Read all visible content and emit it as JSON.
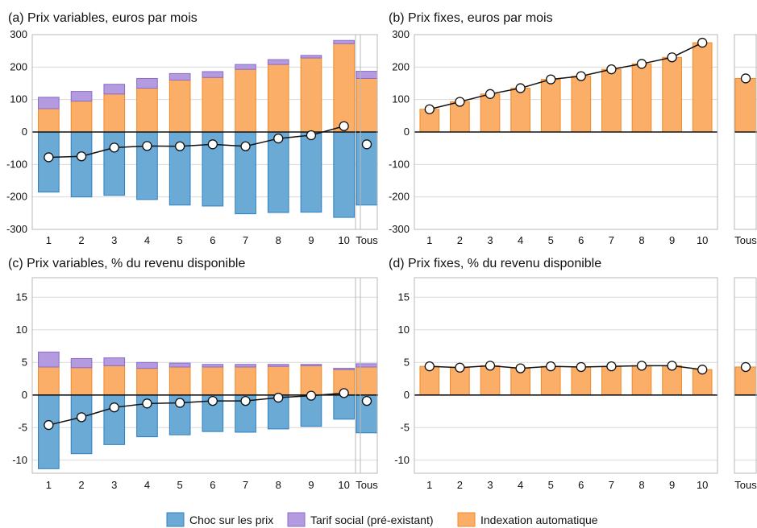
{
  "colors": {
    "choc": "#6aaad4",
    "choc_edge": "#2f7fbf",
    "tarif": "#b49be0",
    "tarif_edge": "#8a6cc8",
    "index": "#fbae68",
    "index_edge": "#f08a28",
    "grid": "#d9d9d9",
    "frame": "#b8b8b8",
    "line": "#111111"
  },
  "legend": {
    "choc": "Choc sur les prix",
    "tarif": "Tarif social (pré-existant)",
    "index": "Indexation automatique"
  },
  "chart_data": [
    {
      "type": "bar",
      "title": "(a) Prix variables, euros par mois",
      "categories": [
        "1",
        "2",
        "3",
        "4",
        "5",
        "6",
        "7",
        "8",
        "9",
        "10"
      ],
      "total_label": "Tous",
      "ylim": [
        -300,
        300
      ],
      "yticks": [
        -300,
        -200,
        -100,
        0,
        100,
        200,
        300
      ],
      "grid": true,
      "series": [
        {
          "name": "Choc sur les prix",
          "values": [
            -185,
            -200,
            -195,
            -208,
            -225,
            -228,
            -252,
            -248,
            -247,
            -263
          ],
          "total": -225
        },
        {
          "name": "Indexation automatique",
          "values": [
            72,
            95,
            117,
            135,
            160,
            168,
            193,
            208,
            228,
            272
          ],
          "total": 165
        },
        {
          "name": "Tarif social (pré-existant)",
          "values": [
            35,
            30,
            30,
            30,
            20,
            18,
            15,
            15,
            8,
            10
          ],
          "total": 22
        }
      ],
      "net": {
        "values": [
          -78,
          -75,
          -48,
          -43,
          -44,
          -38,
          -44,
          -20,
          -10,
          18
        ],
        "total": -38
      }
    },
    {
      "type": "bar",
      "title": "(b) Prix fixes, euros par mois",
      "categories": [
        "1",
        "2",
        "3",
        "4",
        "5",
        "6",
        "7",
        "8",
        "9",
        "10"
      ],
      "total_label": "Tous",
      "ylim": [
        -300,
        300
      ],
      "yticks": [
        -300,
        -200,
        -100,
        0,
        100,
        200,
        300
      ],
      "grid": true,
      "series": [
        {
          "name": "Indexation automatique",
          "values": [
            70,
            93,
            117,
            135,
            162,
            172,
            193,
            210,
            230,
            275
          ],
          "total": 165
        }
      ],
      "net": {
        "values": [
          70,
          93,
          117,
          135,
          162,
          172,
          193,
          210,
          230,
          275
        ],
        "total": 165
      }
    },
    {
      "type": "bar",
      "title": "(c) Prix variables, % du revenu disponible",
      "categories": [
        "1",
        "2",
        "3",
        "4",
        "5",
        "6",
        "7",
        "8",
        "9",
        "10"
      ],
      "total_label": "Tous",
      "ylim": [
        -12,
        18
      ],
      "yticks": [
        -10,
        -5,
        0,
        5,
        10,
        15
      ],
      "grid": true,
      "series": [
        {
          "name": "Choc sur les prix",
          "values": [
            -11.3,
            -9.0,
            -7.6,
            -6.4,
            -6.1,
            -5.6,
            -5.7,
            -5.2,
            -4.8,
            -3.7
          ],
          "total": -5.8
        },
        {
          "name": "Indexation automatique",
          "values": [
            4.3,
            4.2,
            4.5,
            4.1,
            4.3,
            4.3,
            4.3,
            4.4,
            4.5,
            3.9
          ],
          "total": 4.3
        },
        {
          "name": "Tarif social (pré-existant)",
          "values": [
            2.3,
            1.4,
            1.2,
            0.9,
            0.6,
            0.4,
            0.4,
            0.3,
            0.2,
            0.2
          ],
          "total": 0.5
        }
      ],
      "net": {
        "values": [
          -4.6,
          -3.4,
          -1.9,
          -1.3,
          -1.2,
          -0.9,
          -0.9,
          -0.4,
          -0.1,
          0.3
        ],
        "total": -0.9
      }
    },
    {
      "type": "bar",
      "title": "(d) Prix fixes, % du revenu disponible",
      "categories": [
        "1",
        "2",
        "3",
        "4",
        "5",
        "6",
        "7",
        "8",
        "9",
        "10"
      ],
      "total_label": "Tous",
      "ylim": [
        -12,
        18
      ],
      "yticks": [
        -10,
        -5,
        0,
        5,
        10,
        15
      ],
      "grid": true,
      "series": [
        {
          "name": "Indexation automatique",
          "values": [
            4.4,
            4.2,
            4.5,
            4.1,
            4.4,
            4.3,
            4.4,
            4.5,
            4.5,
            3.9
          ],
          "total": 4.3
        }
      ],
      "net": {
        "values": [
          4.4,
          4.2,
          4.5,
          4.1,
          4.4,
          4.3,
          4.4,
          4.5,
          4.5,
          3.9
        ],
        "total": 4.3
      }
    }
  ]
}
